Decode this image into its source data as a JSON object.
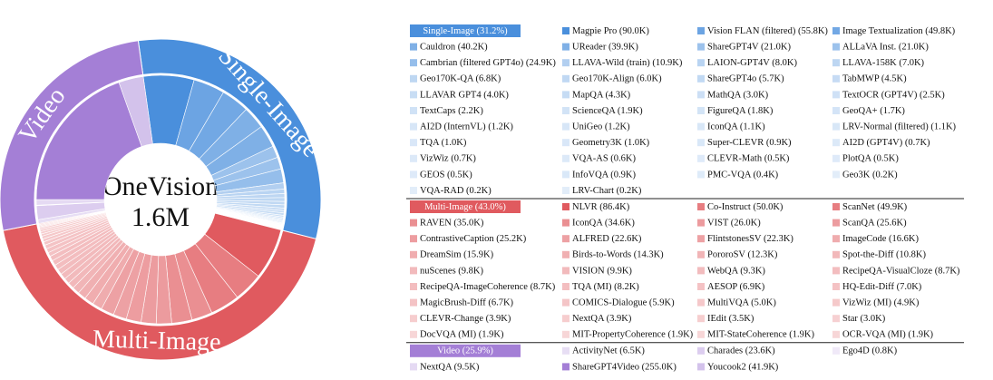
{
  "chart_data": {
    "type": "sunburst",
    "center_title": "OneVision",
    "center_total": "1.6M",
    "start_angle": -8,
    "groups": [
      {
        "name": "Single-Image",
        "label": "Single-Image (31.2%)",
        "value": 31.2,
        "color": "#4a8fdc",
        "items": [
          {
            "label": "Magpie Pro (90.0K)",
            "value": 90.0
          },
          {
            "label": "Vision FLAN (filtered) (55.8K)",
            "value": 55.8
          },
          {
            "label": "Image Textualization (49.8K)",
            "value": 49.8
          },
          {
            "label": "Cauldron (40.2K)",
            "value": 40.2
          },
          {
            "label": "UReader (39.9K)",
            "value": 39.9
          },
          {
            "label": "ShareGPT4V (21.0K)",
            "value": 21.0
          },
          {
            "label": "ALLaVA Inst. (21.0K)",
            "value": 21.0
          },
          {
            "label": "Cambrian (filtered GPT4o) (24.9K)",
            "value": 24.9
          },
          {
            "label": "LLAVA-Wild (train) (10.9K)",
            "value": 10.9
          },
          {
            "label": "LAION-GPT4V (8.0K)",
            "value": 8.0
          },
          {
            "label": "LLAVA-158K (7.0K)",
            "value": 7.0
          },
          {
            "label": "Geo170K-QA (6.8K)",
            "value": 6.8
          },
          {
            "label": "Geo170K-Align (6.0K)",
            "value": 6.0
          },
          {
            "label": "ShareGPT4o (5.7K)",
            "value": 5.7
          },
          {
            "label": "TabMWP (4.5K)",
            "value": 4.5
          },
          {
            "label": "LLAVAR GPT4 (4.0K)",
            "value": 4.0
          },
          {
            "label": "MapQA (4.3K)",
            "value": 4.3
          },
          {
            "label": "MathQA (3.0K)",
            "value": 3.0
          },
          {
            "label": "TextOCR (GPT4V) (2.5K)",
            "value": 2.5
          },
          {
            "label": "TextCaps (2.2K)",
            "value": 2.2
          },
          {
            "label": "ScienceQA (1.9K)",
            "value": 1.9
          },
          {
            "label": "FigureQA (1.8K)",
            "value": 1.8
          },
          {
            "label": "GeoQA+ (1.7K)",
            "value": 1.7
          },
          {
            "label": "AI2D (InternVL) (1.2K)",
            "value": 1.2
          },
          {
            "label": "UniGeo (1.2K)",
            "value": 1.2
          },
          {
            "label": "IconQA (1.1K)",
            "value": 1.1
          },
          {
            "label": "LRV-Normal (filtered) (1.1K)",
            "value": 1.1
          },
          {
            "label": "TQA (1.0K)",
            "value": 1.0
          },
          {
            "label": "Geometry3K (1.0K)",
            "value": 1.0
          },
          {
            "label": "Super-CLEVR (0.9K)",
            "value": 0.9
          },
          {
            "label": "AI2D (GPT4V) (0.7K)",
            "value": 0.7
          },
          {
            "label": "VizWiz (0.7K)",
            "value": 0.7
          },
          {
            "label": "VQA-AS (0.6K)",
            "value": 0.6
          },
          {
            "label": "CLEVR-Math (0.5K)",
            "value": 0.5
          },
          {
            "label": "PlotQA (0.5K)",
            "value": 0.5
          },
          {
            "label": "GEOS (0.5K)",
            "value": 0.5
          },
          {
            "label": "InfoVQA (0.9K)",
            "value": 0.9
          },
          {
            "label": "PMC-VQA (0.4K)",
            "value": 0.4
          },
          {
            "label": "Geo3K (0.2K)",
            "value": 0.2
          },
          {
            "label": "VQA-RAD (0.2K)",
            "value": 0.2
          },
          {
            "label": "LRV-Chart (0.2K)",
            "value": 0.2
          }
        ]
      },
      {
        "name": "Multi-Image",
        "label": "Multi-Image (43.0%)",
        "value": 43.0,
        "color": "#e05a5f",
        "items": [
          {
            "label": "NLVR (86.4K)",
            "value": 86.4
          },
          {
            "label": "Co-Instruct (50.0K)",
            "value": 50.0
          },
          {
            "label": "ScanNet (49.9K)",
            "value": 49.9
          },
          {
            "label": "RAVEN (35.0K)",
            "value": 35.0
          },
          {
            "label": "IconQA (34.6K)",
            "value": 34.6
          },
          {
            "label": "VIST (26.0K)",
            "value": 26.0
          },
          {
            "label": "ScanQA (25.6K)",
            "value": 25.6
          },
          {
            "label": "ContrastiveCaption (25.2K)",
            "value": 25.2
          },
          {
            "label": "ALFRED (22.6K)",
            "value": 22.6
          },
          {
            "label": "FlintstonesSV (22.3K)",
            "value": 22.3
          },
          {
            "label": "ImageCode (16.6K)",
            "value": 16.6
          },
          {
            "label": "DreamSim (15.9K)",
            "value": 15.9
          },
          {
            "label": "Birds-to-Words (14.3K)",
            "value": 14.3
          },
          {
            "label": "PororoSV (12.3K)",
            "value": 12.3
          },
          {
            "label": "Spot-the-Diff (10.8K)",
            "value": 10.8
          },
          {
            "label": "nuScenes (9.8K)",
            "value": 9.8
          },
          {
            "label": "VISION (9.9K)",
            "value": 9.9
          },
          {
            "label": "WebQA (9.3K)",
            "value": 9.3
          },
          {
            "label": "RecipeQA-VisualCloze (8.7K)",
            "value": 8.7
          },
          {
            "label": "RecipeQA-ImageCoherence (8.7K)",
            "value": 8.7
          },
          {
            "label": "TQA (MI) (8.2K)",
            "value": 8.2
          },
          {
            "label": "AESOP (6.9K)",
            "value": 6.9
          },
          {
            "label": "HQ-Edit-Diff (7.0K)",
            "value": 7.0
          },
          {
            "label": "MagicBrush-Diff (6.7K)",
            "value": 6.7
          },
          {
            "label": "COMICS-Dialogue (5.9K)",
            "value": 5.9
          },
          {
            "label": "MultiVQA (5.0K)",
            "value": 5.0
          },
          {
            "label": "VizWiz (MI) (4.9K)",
            "value": 4.9
          },
          {
            "label": "CLEVR-Change (3.9K)",
            "value": 3.9
          },
          {
            "label": "NextQA (3.9K)",
            "value": 3.9
          },
          {
            "label": "IEdit (3.5K)",
            "value": 3.5
          },
          {
            "label": "Star (3.0K)",
            "value": 3.0
          },
          {
            "label": "DocVQA (MI) (1.9K)",
            "value": 1.9
          },
          {
            "label": "MIT-PropertyCoherence (1.9K)",
            "value": 1.9
          },
          {
            "label": "MIT-StateCoherence (1.9K)",
            "value": 1.9
          },
          {
            "label": "OCR-VQA (MI) (1.9K)",
            "value": 1.9
          }
        ]
      },
      {
        "name": "Video",
        "label": "Video (25.9%)",
        "value": 25.9,
        "color": "#a47fd6",
        "items": [
          {
            "label": "ActivityNet (6.5K)",
            "value": 6.5
          },
          {
            "label": "Charades (23.6K)",
            "value": 23.6
          },
          {
            "label": "Ego4D (0.8K)",
            "value": 0.8
          },
          {
            "label": "NextQA (9.5K)",
            "value": 9.5
          },
          {
            "label": "ShareGPT4Video (255.0K)",
            "value": 255.0
          },
          {
            "label": "Youcook2 (41.9K)",
            "value": 41.9
          }
        ]
      }
    ]
  }
}
